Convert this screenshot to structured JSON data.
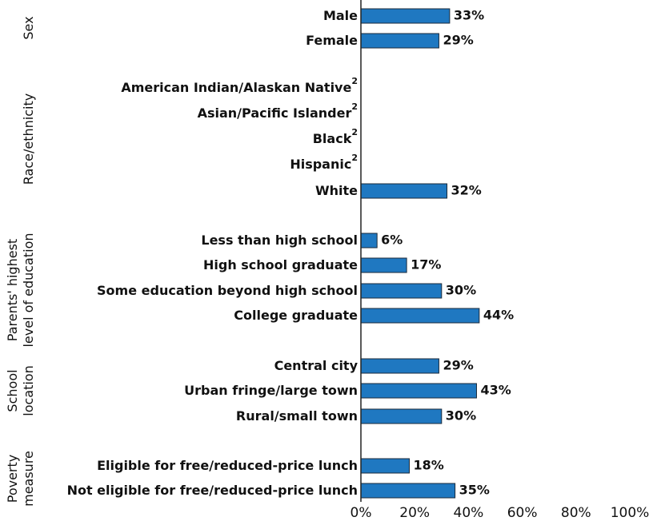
{
  "chart_data": {
    "type": "bar",
    "orientation": "horizontal",
    "xlim": [
      0,
      100
    ],
    "x_ticks": [
      "0%",
      "20%",
      "40%",
      "60%",
      "80%",
      "100%"
    ],
    "bar_color": "#1f78c1",
    "groups": [
      {
        "label_lines": [
          "Sex"
        ],
        "items": [
          {
            "label": "Male",
            "sup": "",
            "value": 33,
            "value_label": "33%"
          },
          {
            "label": "Female",
            "sup": "",
            "value": 29,
            "value_label": "29%"
          }
        ]
      },
      {
        "label_lines": [
          "Race/ethnicity"
        ],
        "items": [
          {
            "label": "American Indian/Alaskan Native",
            "sup": "2",
            "value": null,
            "value_label": ""
          },
          {
            "label": "Asian/Pacific Islander",
            "sup": "2",
            "value": null,
            "value_label": ""
          },
          {
            "label": "Black",
            "sup": "2",
            "value": null,
            "value_label": ""
          },
          {
            "label": "Hispanic",
            "sup": "2",
            "value": null,
            "value_label": ""
          },
          {
            "label": "White",
            "sup": "",
            "value": 32,
            "value_label": "32%"
          }
        ]
      },
      {
        "label_lines": [
          "Parents' highest",
          "level of education"
        ],
        "items": [
          {
            "label": "Less than high school",
            "sup": "",
            "value": 6,
            "value_label": "6%"
          },
          {
            "label": "High school graduate",
            "sup": "",
            "value": 17,
            "value_label": "17%"
          },
          {
            "label": "Some education beyond high school",
            "sup": "",
            "value": 30,
            "value_label": "30%"
          },
          {
            "label": "College graduate",
            "sup": "",
            "value": 44,
            "value_label": "44%"
          }
        ]
      },
      {
        "label_lines": [
          "School",
          "location"
        ],
        "items": [
          {
            "label": "Central city",
            "sup": "",
            "value": 29,
            "value_label": "29%"
          },
          {
            "label": "Urban fringe/large town",
            "sup": "",
            "value": 43,
            "value_label": "43%"
          },
          {
            "label": "Rural/small town",
            "sup": "",
            "value": 30,
            "value_label": "30%"
          }
        ]
      },
      {
        "label_lines": [
          "Poverty",
          "measure"
        ],
        "items": [
          {
            "label": "Eligible for free/reduced-price lunch",
            "sup": "",
            "value": 18,
            "value_label": "18%"
          },
          {
            "label": "Not eligible for free/reduced-price lunch",
            "sup": "",
            "value": 35,
            "value_label": "35%"
          }
        ]
      }
    ]
  }
}
